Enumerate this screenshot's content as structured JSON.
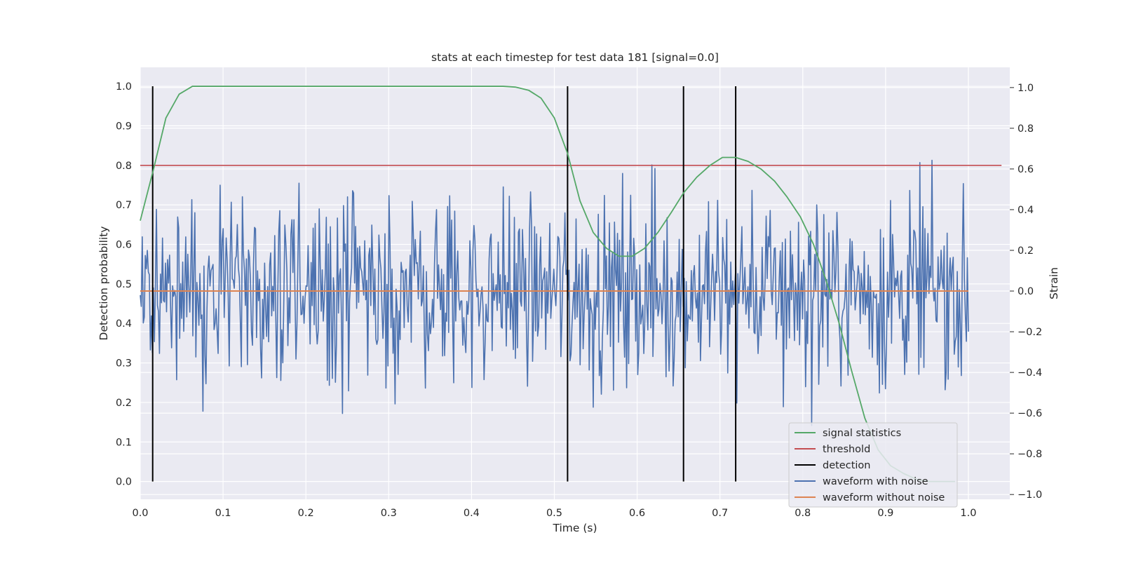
{
  "chart_data": {
    "type": "line",
    "title": "stats at each timestep for test data 181 [signal=0.0]",
    "xlabel": "Time (s)",
    "ylabel": "Detection probability",
    "y2label": "Strain",
    "xlim": [
      0.0,
      1.05
    ],
    "ylim": [
      -0.045,
      1.048
    ],
    "y2lim": [
      -1.0235,
      1.0995
    ],
    "x_ticks": [
      0.0,
      0.1,
      0.2,
      0.3,
      0.4,
      0.5,
      0.6,
      0.7,
      0.8,
      0.9,
      1.0
    ],
    "x_tick_labels": [
      "0.0",
      "0.1",
      "0.2",
      "0.3",
      "0.4",
      "0.5",
      "0.6",
      "0.7",
      "0.8",
      "0.9",
      "1.0"
    ],
    "y_ticks": [
      0.0,
      0.1,
      0.2,
      0.3,
      0.4,
      0.5,
      0.6,
      0.7,
      0.8,
      0.9,
      1.0
    ],
    "y_tick_labels": [
      "0.0",
      "0.1",
      "0.2",
      "0.3",
      "0.4",
      "0.5",
      "0.6",
      "0.7",
      "0.8",
      "0.9",
      "1.0"
    ],
    "y2_ticks": [
      -1.0,
      -0.8,
      -0.6,
      -0.4,
      -0.2,
      0.0,
      0.2,
      0.4,
      0.6,
      0.8,
      1.0
    ],
    "y2_tick_labels": [
      "−1.0",
      "−0.8",
      "−0.6",
      "−0.4",
      "−0.2",
      "0.0",
      "0.2",
      "0.4",
      "0.6",
      "0.8",
      "1.0"
    ],
    "grid": true,
    "legend_position": "lower-right",
    "colors": {
      "background": "#eaeaf2",
      "grid": "#ffffff",
      "signal_statistics": "#55a868",
      "threshold": "#c44e52",
      "detection": "#000000",
      "waveform_with_noise": "#4c72b0",
      "waveform_without_noise": "#dd8452"
    },
    "series": [
      {
        "name": "signal statistics",
        "axis": "left",
        "x": [
          0.0,
          0.016,
          0.031,
          0.047,
          0.063,
          0.078,
          0.094,
          0.109,
          0.125,
          0.2,
          0.3,
          0.4,
          0.438,
          0.453,
          0.469,
          0.484,
          0.5,
          0.516,
          0.531,
          0.547,
          0.563,
          0.578,
          0.594,
          0.609,
          0.625,
          0.641,
          0.656,
          0.672,
          0.688,
          0.703,
          0.719,
          0.734,
          0.75,
          0.766,
          0.781,
          0.797,
          0.813,
          0.828,
          0.844,
          0.859,
          0.875,
          0.891,
          0.906,
          0.922,
          0.938,
          0.953,
          0.969,
          0.984
        ],
        "values": [
          0.66,
          0.79,
          0.92,
          0.98,
          1.0,
          1.0,
          1.0,
          1.0,
          1.0,
          1.0,
          1.0,
          1.0,
          1.0,
          0.998,
          0.99,
          0.97,
          0.92,
          0.83,
          0.71,
          0.63,
          0.59,
          0.57,
          0.57,
          0.59,
          0.63,
          0.68,
          0.73,
          0.77,
          0.8,
          0.82,
          0.82,
          0.81,
          0.79,
          0.76,
          0.72,
          0.67,
          0.6,
          0.51,
          0.4,
          0.28,
          0.16,
          0.08,
          0.04,
          0.02,
          0.005,
          0.0,
          0.0,
          0.0
        ]
      },
      {
        "name": "threshold",
        "axis": "left",
        "x": [
          0.0,
          1.04
        ],
        "values": [
          0.8,
          0.8
        ]
      },
      {
        "name": "detection",
        "axis": "left",
        "x": [
          0.015,
          0.516,
          0.656,
          0.719
        ],
        "values": [
          1.0,
          1.0,
          1.0,
          1.0
        ]
      },
      {
        "name": "waveform with noise",
        "axis": "right",
        "x_start": 0.0,
        "x_end": 1.0,
        "points": 820,
        "values": []
      },
      {
        "name": "waveform without noise",
        "axis": "right",
        "x": [
          0.0,
          1.0
        ],
        "values": [
          0.0,
          0.0
        ]
      }
    ]
  }
}
